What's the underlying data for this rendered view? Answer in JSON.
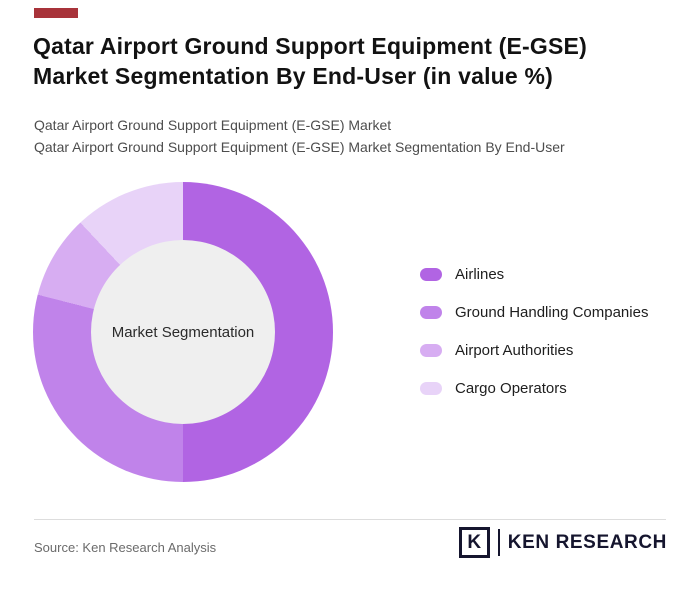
{
  "page": {
    "accent_color": "#a8333a",
    "title_line1": "Qatar Airport Ground Support Equipment (E-GSE)",
    "title_line2": "Market Segmentation By End-User (in value %)",
    "subtitle_line1": "Qatar Airport Ground Support Equipment (E-GSE) Market",
    "subtitle_line2": "Qatar Airport Ground Support Equipment (E-GSE) Market Segmentation By End-User"
  },
  "chart_data": {
    "type": "pie",
    "variant": "donut",
    "title": "Qatar Airport Ground Support Equipment (E-GSE) Market Segmentation By End-User (in value %)",
    "unit": "value %",
    "center_label": "Market Segmentation",
    "legend_position": "right",
    "segments": [
      {
        "label": "Airlines",
        "value": 50,
        "color": "#b164e3"
      },
      {
        "label": "Ground Handling Companies",
        "value": 29,
        "color": "#c083ea"
      },
      {
        "label": "Airport Authorities",
        "value": 9,
        "color": "#d7adf2"
      },
      {
        "label": "Cargo Operators",
        "value": 12,
        "color": "#e8d3f8"
      }
    ]
  },
  "footer": {
    "source": "Source: Ken Research Analysis",
    "logo_mark": "K",
    "logo_text": "KEN RESEARCH"
  }
}
